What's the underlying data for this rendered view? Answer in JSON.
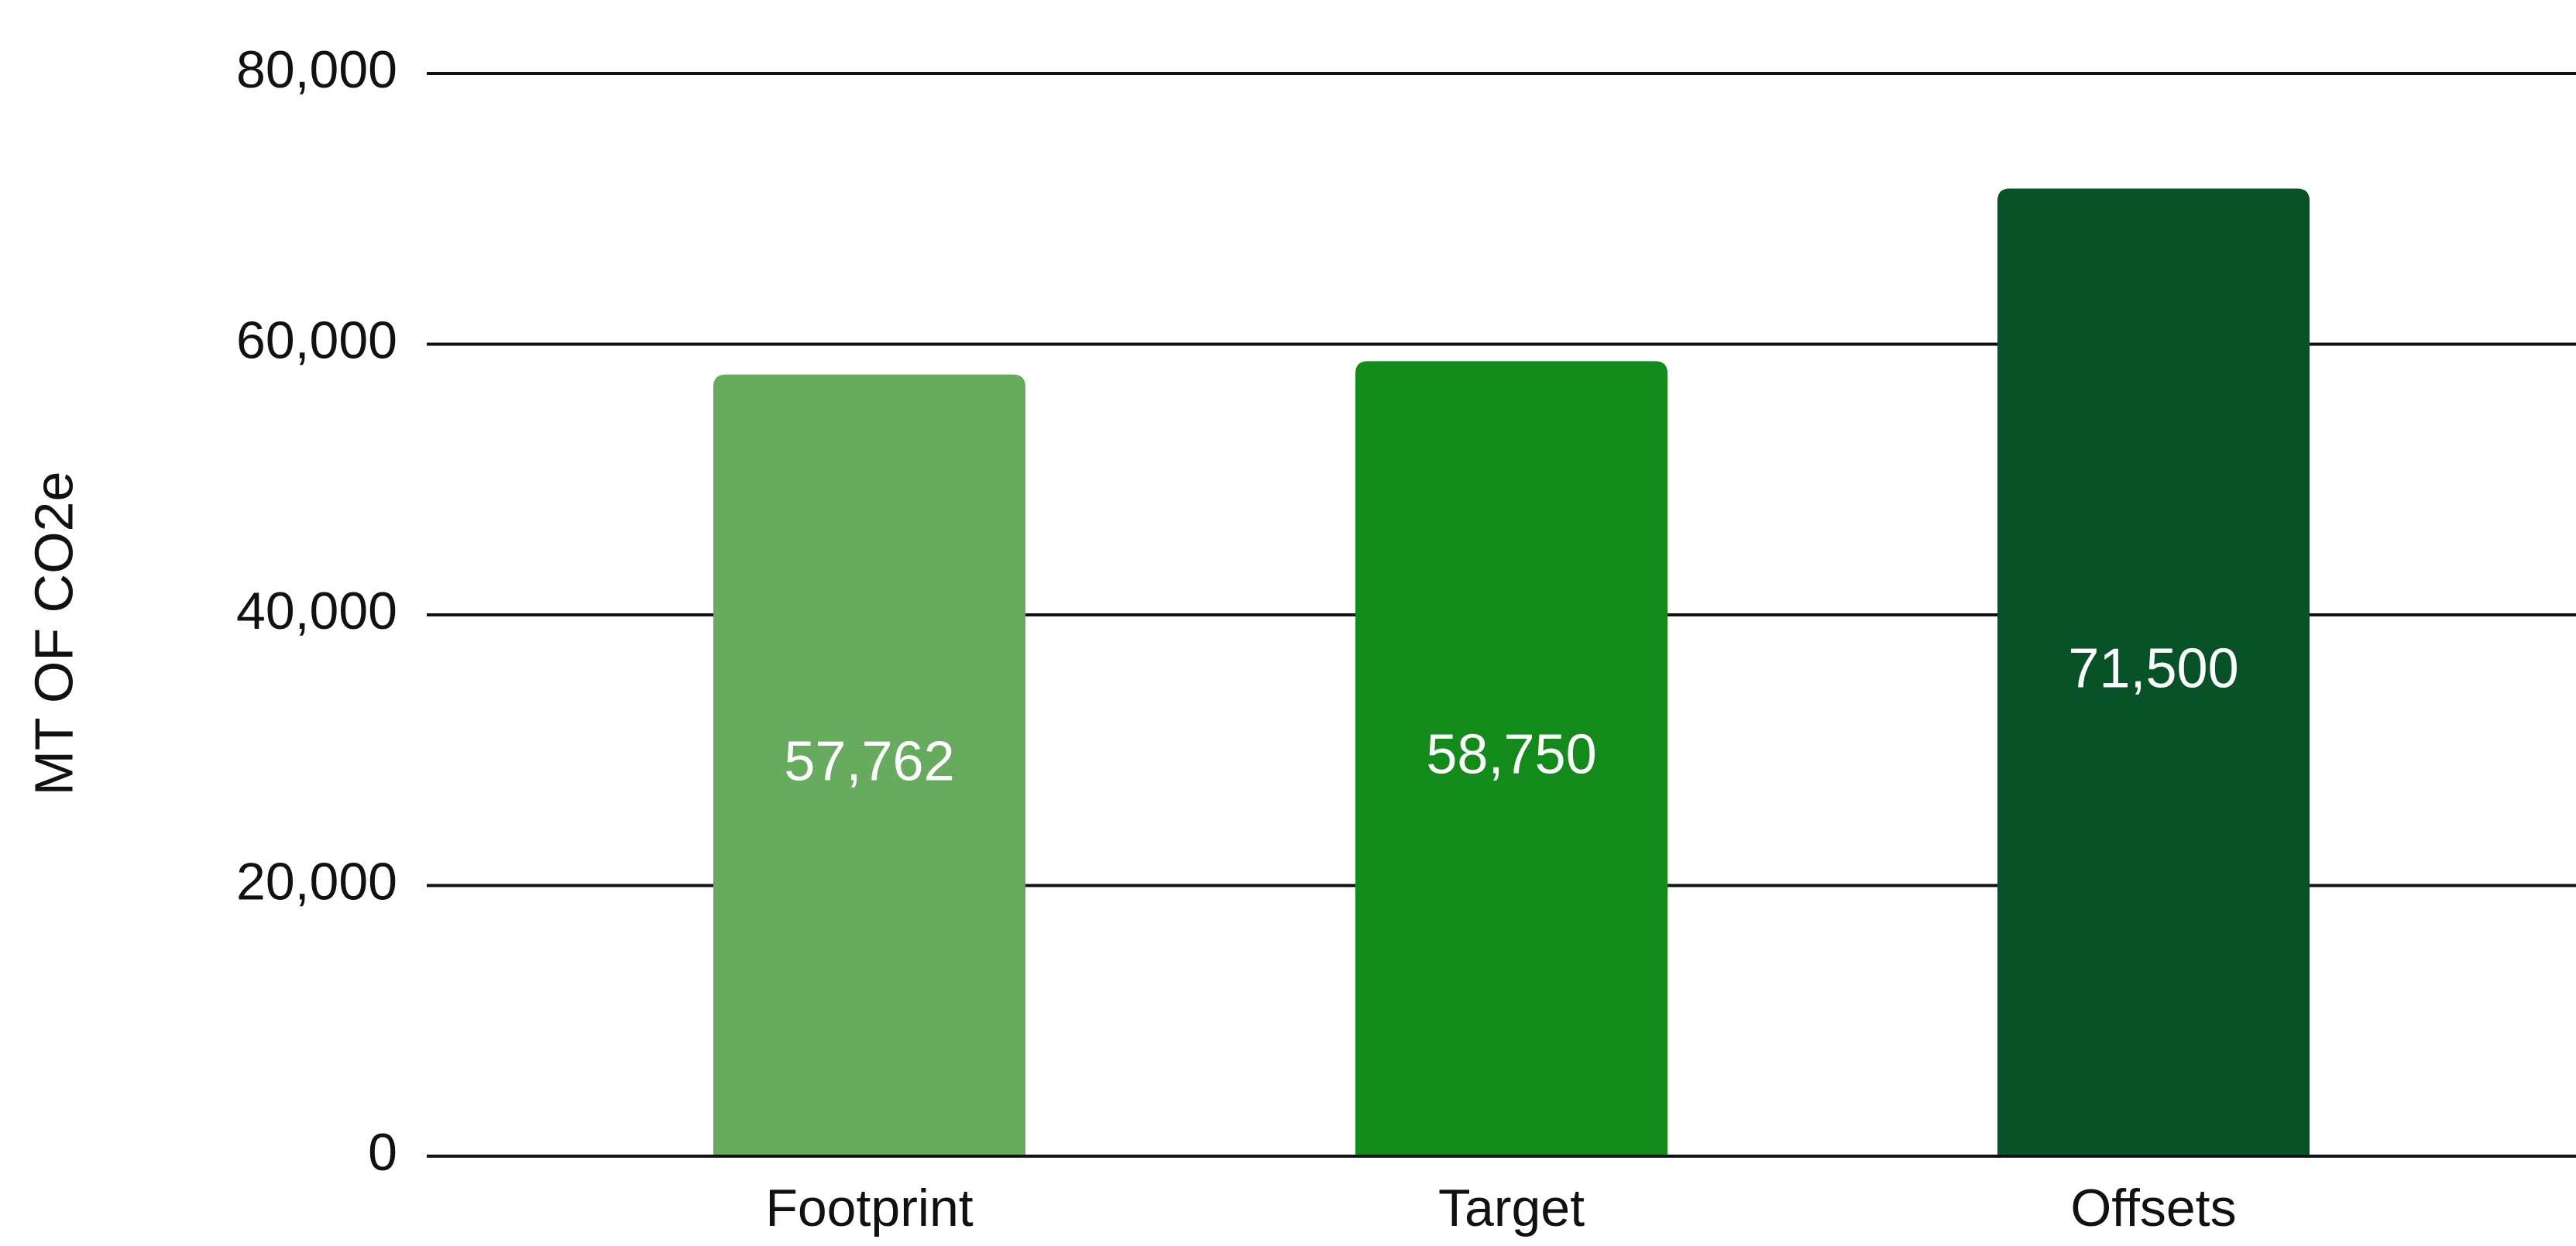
{
  "chart_data": {
    "type": "bar",
    "y_axis_label": "MT OF CO2e",
    "categories": [
      "Footprint",
      "Target",
      "Offsets"
    ],
    "values": [
      57762,
      58750,
      71500
    ],
    "value_labels": [
      "57,762",
      "58,750",
      "71,500"
    ],
    "colors": [
      "#66ab5e",
      "#138b1b",
      "#075227"
    ],
    "ylim": [
      0,
      80000
    ],
    "yticks": [
      0,
      {
        "value": 20000,
        "label": "20,000"
      },
      {
        "value": 40000,
        "label": "40,000"
      },
      {
        "value": 60000,
        "label": "60,000"
      },
      {
        "value": 80000,
        "label": "80,000"
      }
    ],
    "grid": true
  }
}
